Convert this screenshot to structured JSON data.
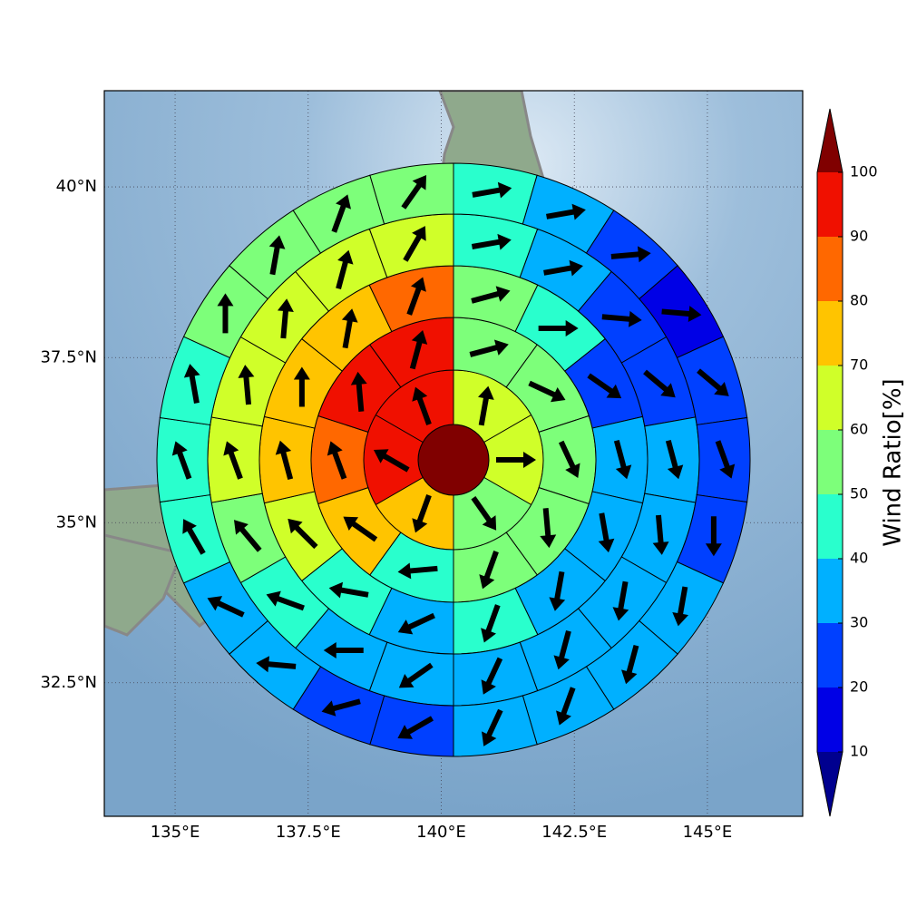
{
  "chart_data": {
    "type": "polar-sectors",
    "xlim": [
      133.67,
      146.79
    ],
    "ylim": [
      30.36,
      41.37
    ],
    "grid": true,
    "xticks": [
      {
        "value": 135,
        "label": "135°E"
      },
      {
        "value": 137.5,
        "label": "137.5°E"
      },
      {
        "value": 140,
        "label": "140°E"
      },
      {
        "value": 142.5,
        "label": "142.5°E"
      },
      {
        "value": 145,
        "label": "145°E"
      }
    ],
    "yticks": [
      {
        "value": 32.5,
        "label": "32.5°N"
      },
      {
        "value": 35,
        "label": "35°N"
      },
      {
        "value": 37.5,
        "label": "37.5°N"
      },
      {
        "value": 40,
        "label": "40°N"
      }
    ],
    "colorbar": {
      "label": "Wind Ratio[%]",
      "levels": [
        10,
        20,
        30,
        40,
        50,
        60,
        70,
        80,
        90,
        100
      ],
      "colors": [
        "#0000e6",
        "#0040ff",
        "#00b0ff",
        "#29ffcd",
        "#7dff7a",
        "#d0ff29",
        "#ffc400",
        "#ff6800",
        "#f01000"
      ],
      "under": "#00008f",
      "over": "#800000"
    },
    "center": {
      "value": 105
    },
    "rings": [
      {
        "values": [
          65,
          65,
          55,
          75,
          95,
          95
        ],
        "directions": [
          10,
          90,
          145,
          200,
          300,
          340
        ]
      },
      {
        "values": [
          55,
          55,
          55,
          55,
          55,
          45,
          75,
          85,
          95,
          95
        ],
        "directions": [
          75,
          115,
          155,
          175,
          200,
          265,
          305,
          340,
          355,
          15
        ]
      },
      {
        "values": [
          55,
          45,
          25,
          35,
          35,
          35,
          45,
          35,
          45,
          65,
          75,
          75,
          75,
          85
        ],
        "directions": [
          75,
          90,
          125,
          165,
          170,
          190,
          200,
          245,
          280,
          315,
          345,
          0,
          10,
          20
        ]
      },
      {
        "values": [
          45,
          35,
          25,
          25,
          35,
          35,
          35,
          35,
          35,
          35,
          35,
          45,
          55,
          65,
          65,
          65,
          65,
          65
        ],
        "directions": [
          80,
          80,
          95,
          130,
          165,
          175,
          190,
          195,
          205,
          235,
          270,
          290,
          320,
          340,
          355,
          5,
          15,
          30
        ]
      },
      {
        "values": [
          45,
          35,
          25,
          15,
          25,
          25,
          25,
          35,
          35,
          35,
          35,
          25,
          25,
          35,
          35,
          45,
          45,
          45,
          55,
          55,
          55,
          55
        ],
        "directions": [
          80,
          80,
          85,
          95,
          130,
          160,
          180,
          190,
          195,
          200,
          205,
          240,
          255,
          275,
          295,
          330,
          340,
          350,
          0,
          10,
          20,
          35
        ]
      }
    ]
  }
}
